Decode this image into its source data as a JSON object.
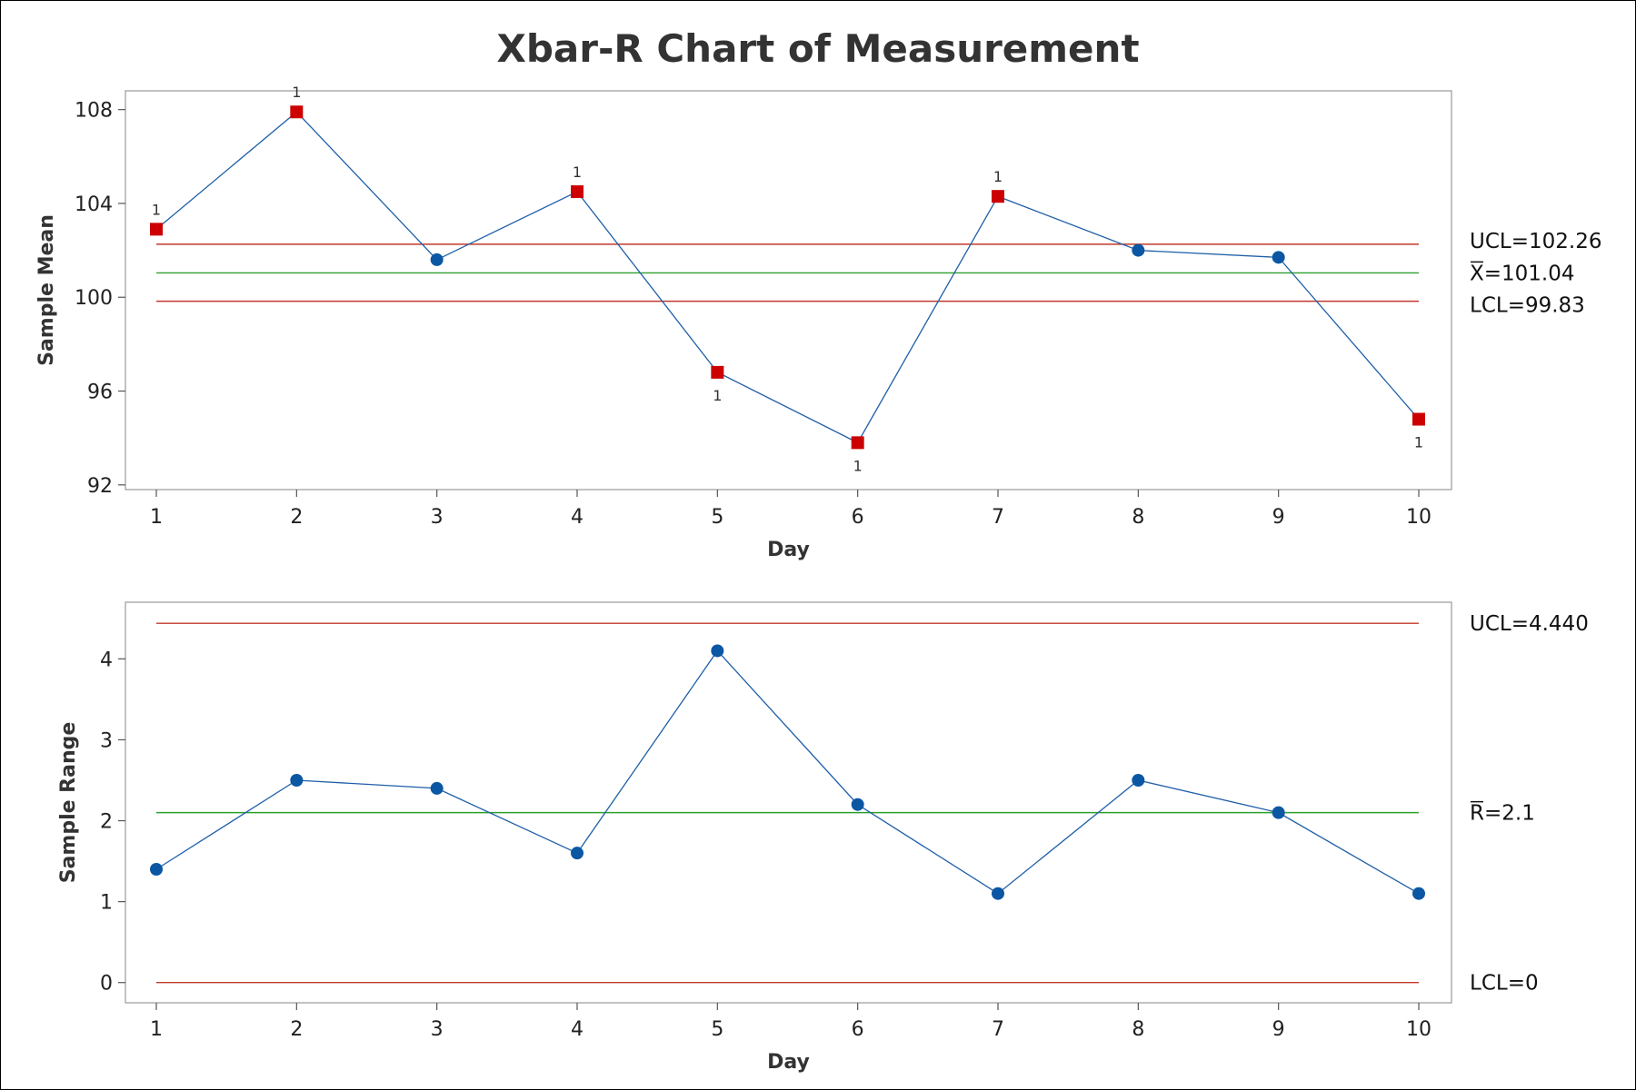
{
  "chart_data": {
    "title": "Xbar-R Chart of Measurement",
    "colors": {
      "series_line": "#1f5fa8",
      "point_ok": "#0b57a4",
      "point_flagged": "#cc0000",
      "control_limit": "#c0392b",
      "center_line": "#2ca02c",
      "frame": "#999999"
    },
    "charts": [
      {
        "name": "xbar",
        "type": "line",
        "xlabel": "Day",
        "ylabel": "Sample Mean",
        "x": [
          1,
          2,
          3,
          4,
          5,
          6,
          7,
          8,
          9,
          10
        ],
        "ylim": [
          91.8,
          108.8
        ],
        "yticks": [
          92,
          96,
          100,
          104,
          108
        ],
        "y": [
          102.9,
          107.9,
          101.6,
          104.5,
          96.8,
          93.8,
          104.3,
          102.0,
          101.7,
          94.8
        ],
        "flagged": [
          true,
          true,
          false,
          true,
          true,
          true,
          true,
          false,
          false,
          true
        ],
        "flag_above": [
          true,
          true,
          false,
          true,
          false,
          false,
          true,
          false,
          false,
          false
        ],
        "flag_text": "1",
        "ucl": 102.26,
        "center": 101.04,
        "lcl": 99.83,
        "ucl_label": "UCL=102.26",
        "center_label": "X=101.04",
        "lcl_label": "LCL=99.83",
        "grid": false
      },
      {
        "name": "range",
        "type": "line",
        "xlabel": "Day",
        "ylabel": "Sample Range",
        "x": [
          1,
          2,
          3,
          4,
          5,
          6,
          7,
          8,
          9,
          10
        ],
        "ylim": [
          -0.25,
          4.7
        ],
        "yticks": [
          0,
          1,
          2,
          3,
          4
        ],
        "y": [
          1.4,
          2.5,
          2.4,
          1.6,
          4.1,
          2.2,
          1.1,
          2.5,
          2.1,
          1.1
        ],
        "flagged": [
          false,
          false,
          false,
          false,
          false,
          false,
          false,
          false,
          false,
          false
        ],
        "ucl": 4.44,
        "center": 2.1,
        "lcl": 0,
        "ucl_label": "UCL=4.440",
        "center_label": "R=2.1",
        "lcl_label": "LCL=0",
        "grid": false
      }
    ]
  }
}
